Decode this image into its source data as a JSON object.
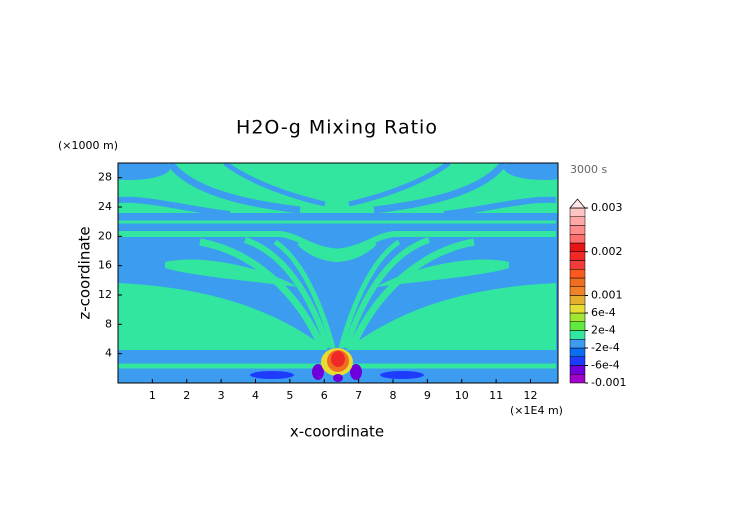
{
  "chart_data": {
    "type": "contour",
    "title": "H2O-g Mixing Ratio",
    "x_label": "x-coordinate",
    "y_label": "z-coordinate",
    "x_unit": "(×1E4 m)",
    "y_unit": "(×1000 m)",
    "time_label": "3000 s",
    "xlim": [
      0,
      12.8
    ],
    "xticks": [
      1,
      2,
      3,
      4,
      5,
      6,
      7,
      8,
      9,
      10,
      11,
      12
    ],
    "ylim": [
      0,
      30
    ],
    "yticks": [
      4,
      8,
      12,
      16,
      20,
      24,
      28
    ],
    "colorbar": {
      "levels": [
        -0.001,
        -0.0008,
        -0.0006,
        -0.0004,
        -0.0002,
        0,
        0.0002,
        0.0004,
        0.0006,
        0.0008,
        0.001,
        0.0012,
        0.0014,
        0.0016,
        0.0018,
        0.002,
        0.0022,
        0.0024,
        0.0026,
        0.0028,
        0.003
      ],
      "colors": [
        "#a000c8",
        "#6e00dc",
        "#1e3cff",
        "#0a6ef5",
        "#3c9cf0",
        "#32e6a0",
        "#60ea40",
        "#a0e632",
        "#e6dc32",
        "#e6af2d",
        "#f08228",
        "#f06e20",
        "#fa5a1e",
        "#f03c3c",
        "#f02828",
        "#e61414",
        "#ff6e6e",
        "#ff8c8c",
        "#ffa8a8",
        "#ffc4c4"
      ],
      "over_color": "#ffe6e6",
      "ticks": [
        0.003,
        0.002,
        0.001,
        {
          "value": 0.0006,
          "label": "6e-4"
        },
        {
          "value": 0.0002,
          "label": "2e-4"
        },
        {
          "value": -0.0002,
          "label": "-2e-4"
        },
        {
          "value": -0.0006,
          "label": "-6e-4"
        },
        -0.001
      ]
    }
  }
}
